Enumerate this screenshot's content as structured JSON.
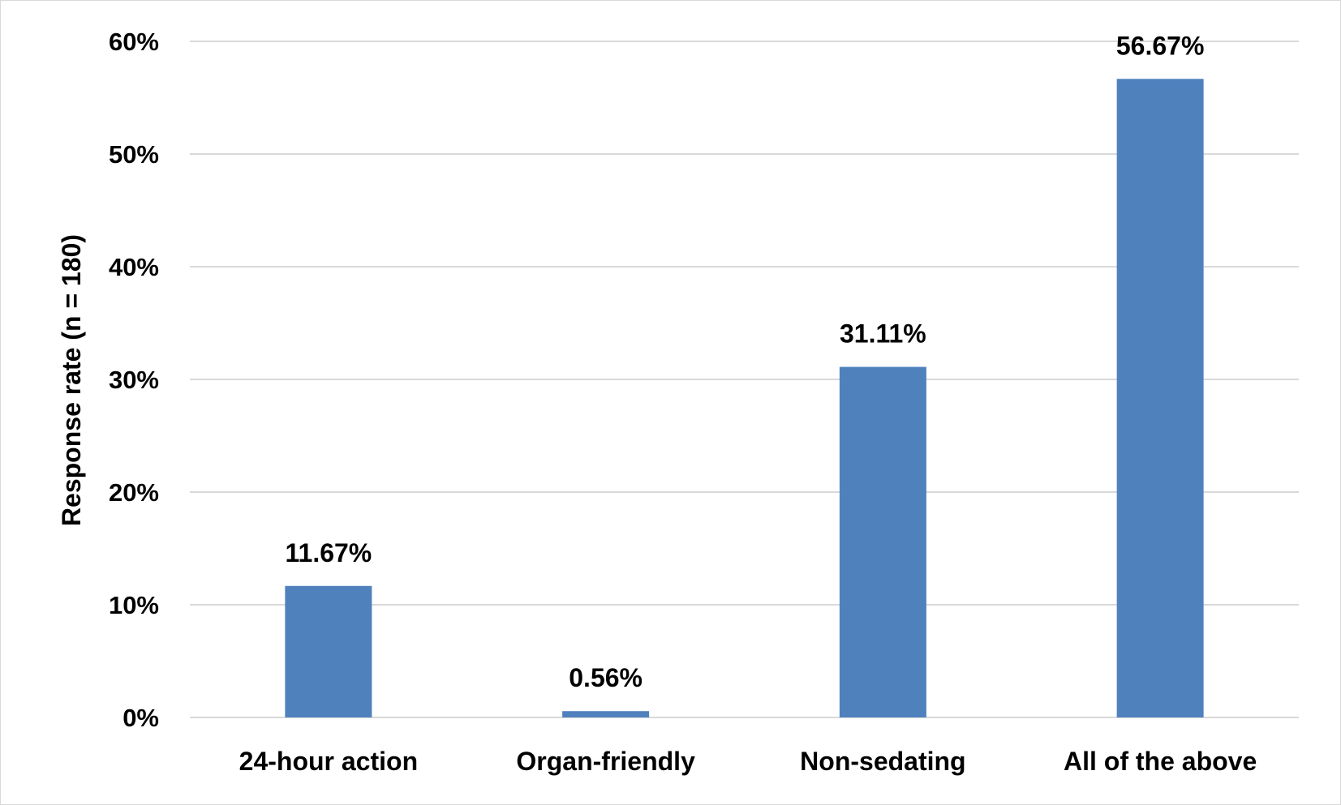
{
  "chart_data": {
    "type": "bar",
    "categories": [
      "24-hour action",
      "Organ-friendly",
      "Non-sedating",
      "All of the above"
    ],
    "values": [
      11.67,
      0.56,
      31.11,
      56.67
    ],
    "data_labels": [
      "11.67%",
      "0.56%",
      "31.11%",
      "56.67%"
    ],
    "title": "",
    "xlabel": "",
    "ylabel": "Response rate (n = 180)",
    "ylim": [
      0,
      60
    ],
    "yticks": [
      0,
      10,
      20,
      30,
      40,
      50,
      60
    ],
    "ytick_labels": [
      "0%",
      "10%",
      "20%",
      "30%",
      "40%",
      "50%",
      "60%"
    ],
    "grid": true,
    "legend": "none",
    "bar_color": "#4f81bd"
  }
}
